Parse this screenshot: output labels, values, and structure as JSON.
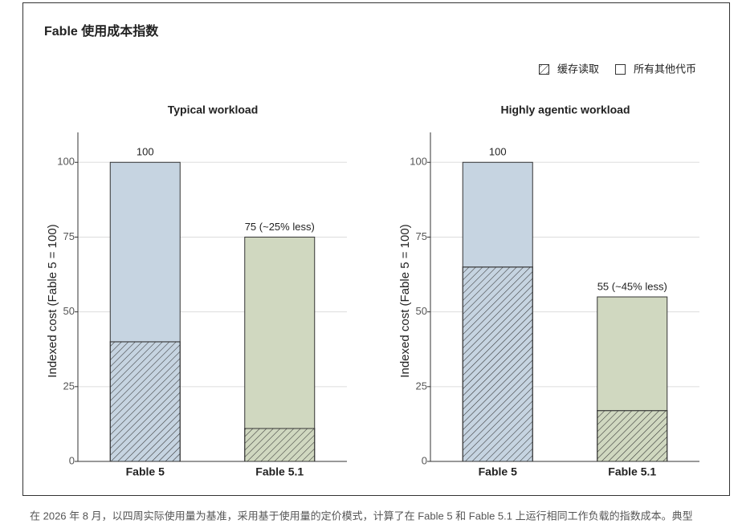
{
  "title": "Fable 使用成本指数",
  "legend": {
    "position": "top-right",
    "items": [
      {
        "name": "缓存读取",
        "hatch": true
      },
      {
        "name": "所有其他代币",
        "hatch": false
      }
    ]
  },
  "caption": "在 2026 年 8 月，以四周实际使用量为基准，采用基于使用量的定价模式，计算了在 Fable 5 和 Fable 5.1 上运行相同工作负载的指数成本。典型",
  "chart_data": [
    {
      "type": "stacked-bar",
      "title": "Typical workload",
      "ylabel": "Indexed cost (Fable 5 = 100)",
      "categories": [
        "Fable 5",
        "Fable 5.1"
      ],
      "colors": [
        "#c6d4e1",
        "#d0d8c0"
      ],
      "series": [
        {
          "hatch": true,
          "values": [
            40,
            11
          ]
        },
        {
          "hatch": false,
          "values": [
            60,
            64
          ]
        }
      ],
      "totals": [
        100,
        75
      ],
      "total_labels": [
        "100",
        "75 (~25% less)"
      ],
      "ylim": [
        0,
        110
      ],
      "yticks": [
        0,
        25,
        50,
        75,
        100
      ],
      "grid": true
    },
    {
      "type": "stacked-bar",
      "title": "Highly agentic workload",
      "ylabel": "Indexed cost (Fable 5 = 100)",
      "categories": [
        "Fable 5",
        "Fable 5.1"
      ],
      "colors": [
        "#c6d4e1",
        "#d0d8c0"
      ],
      "series": [
        {
          "hatch": true,
          "values": [
            65,
            17
          ]
        },
        {
          "hatch": false,
          "values": [
            35,
            38
          ]
        }
      ],
      "totals": [
        100,
        55
      ],
      "total_labels": [
        "100",
        "55 (~45% less)"
      ],
      "ylim": [
        0,
        110
      ],
      "yticks": [
        0,
        25,
        50,
        75,
        100
      ],
      "grid": true
    }
  ]
}
